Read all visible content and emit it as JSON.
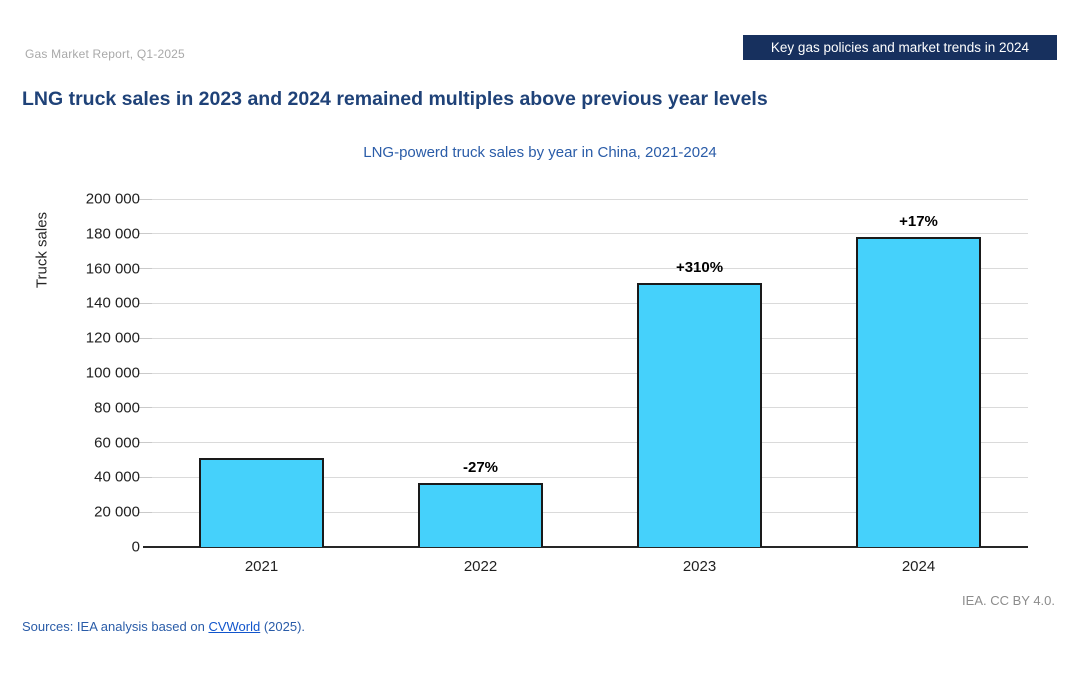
{
  "header": {
    "report_label": "Gas Market Report, Q1-2025",
    "badge_label": "Key gas policies and market trends in 2024",
    "badge_bg": "#17305E"
  },
  "title": "LNG truck sales in 2023 and 2024 remained multiples above previous year levels",
  "subtitle": "LNG-powerd truck sales by year in China, 2021-2024",
  "chart_data": {
    "type": "bar",
    "title": "LNG-powerd truck sales by year in China, 2021-2024",
    "categories": [
      "2021",
      "2022",
      "2023",
      "2024"
    ],
    "values": [
      51000,
      37000,
      152000,
      178000
    ],
    "annotations": [
      "",
      "-27%",
      "+310%",
      "+17%"
    ],
    "xlabel": "",
    "ylabel": "Truck sales",
    "ylim": [
      0,
      200000
    ],
    "ytick_step": 20000,
    "ytick_labels": [
      "0",
      "20 000",
      "40 000",
      "60 000",
      "80 000",
      "100 000",
      "120 000",
      "140 000",
      "160 000",
      "180 000",
      "200 000"
    ],
    "grid": "horizontal",
    "legend": "none",
    "bar_fill": "#45D1FB",
    "bar_border": "#1A1A1A",
    "gridline_color": "#DADADA"
  },
  "footer": {
    "license": "IEA. CC BY 4.0.",
    "sources_prefix": "Sources: IEA analysis based on ",
    "source_link": "CVWorld",
    "sources_suffix": " (2025)."
  }
}
